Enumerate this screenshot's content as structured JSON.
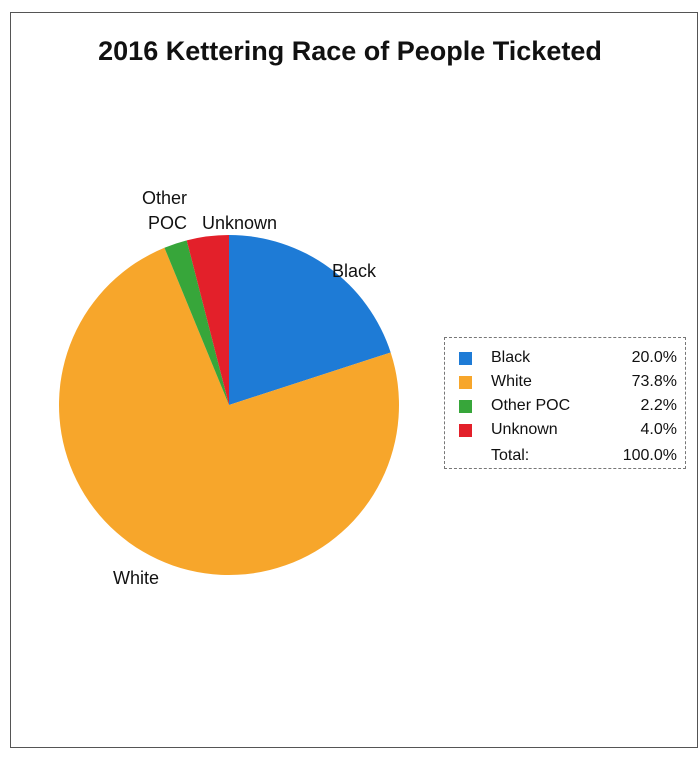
{
  "chart_data": {
    "type": "pie",
    "title": "2016 Kettering Race of People Ticketed",
    "slices": [
      {
        "label": "Black",
        "value": 20.0,
        "display": "20.0%",
        "color": "#1e7bd6"
      },
      {
        "label": "White",
        "value": 73.8,
        "display": "73.8%",
        "color": "#f7a62b"
      },
      {
        "label": "Other POC",
        "value": 2.2,
        "display": "2.2%",
        "color": "#37a63a"
      },
      {
        "label": "Unknown",
        "value": 4.0,
        "display": "4.0%",
        "color": "#e3202a"
      }
    ],
    "total_label": "Total:",
    "total_value": "100.0%",
    "legend_position": "right"
  }
}
